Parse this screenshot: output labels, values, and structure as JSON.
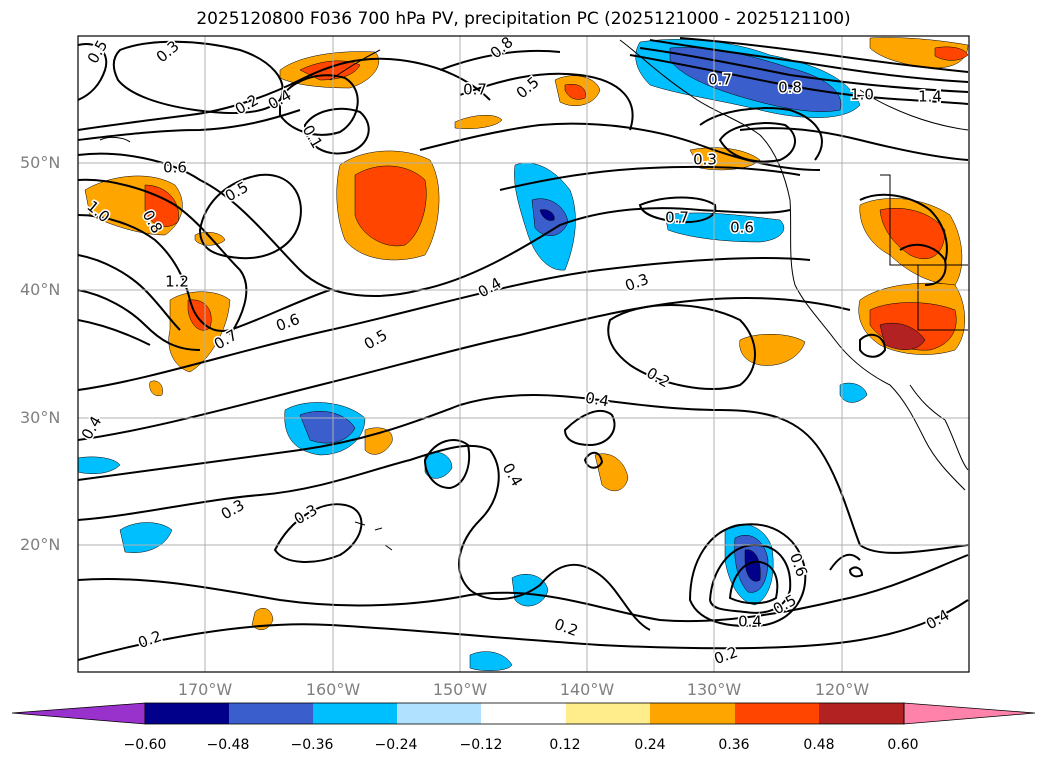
{
  "title": "2025120800 F036 700 hPa PV, precipitation PC (2025121000 - 2025121100)",
  "map": {
    "lat_labels": [
      "50°N",
      "40°N",
      "30°N",
      "20°N"
    ],
    "lon_labels": [
      "170°W",
      "160°W",
      "150°W",
      "140°W",
      "130°W",
      "120°W"
    ],
    "contour_labels": [
      "0.5",
      "0.3",
      "0.2",
      "0.4",
      "0.8",
      "0.7",
      "0.5",
      "0.7",
      "0.8",
      "1.0",
      "1.4",
      "0.6",
      "0.5",
      "0.1",
      "0.3",
      "0.7",
      "0.6",
      "1.0",
      "0.8",
      "1.2",
      "0.7",
      "0.6",
      "0.4",
      "0.3",
      "0.5",
      "0.2",
      "0.4",
      "0.4",
      "0.3",
      "0.3",
      "0.4",
      "0.2",
      "0.6",
      "0.5",
      "0.4",
      "0.2",
      "0.2",
      "0.4"
    ],
    "colors": {
      "orange": "#ffa500",
      "red_orange": "#ff4500",
      "dark_red": "#b22222",
      "light_blue": "#00bfff",
      "mid_blue": "#3a5fcd",
      "dark_blue": "#00008b"
    }
  },
  "colorbar": {
    "ticks": [
      "−0.60",
      "−0.48",
      "−0.36",
      "−0.24",
      "−0.12",
      "0.12",
      "0.24",
      "0.36",
      "0.48",
      "0.60"
    ],
    "colors": [
      "#9932cc",
      "#00008b",
      "#3a5fcd",
      "#00bfff",
      "#b0e2ff",
      "#ffffff",
      "#ffec8b",
      "#ffa500",
      "#ff4500",
      "#b22222",
      "#ff82ab"
    ]
  }
}
